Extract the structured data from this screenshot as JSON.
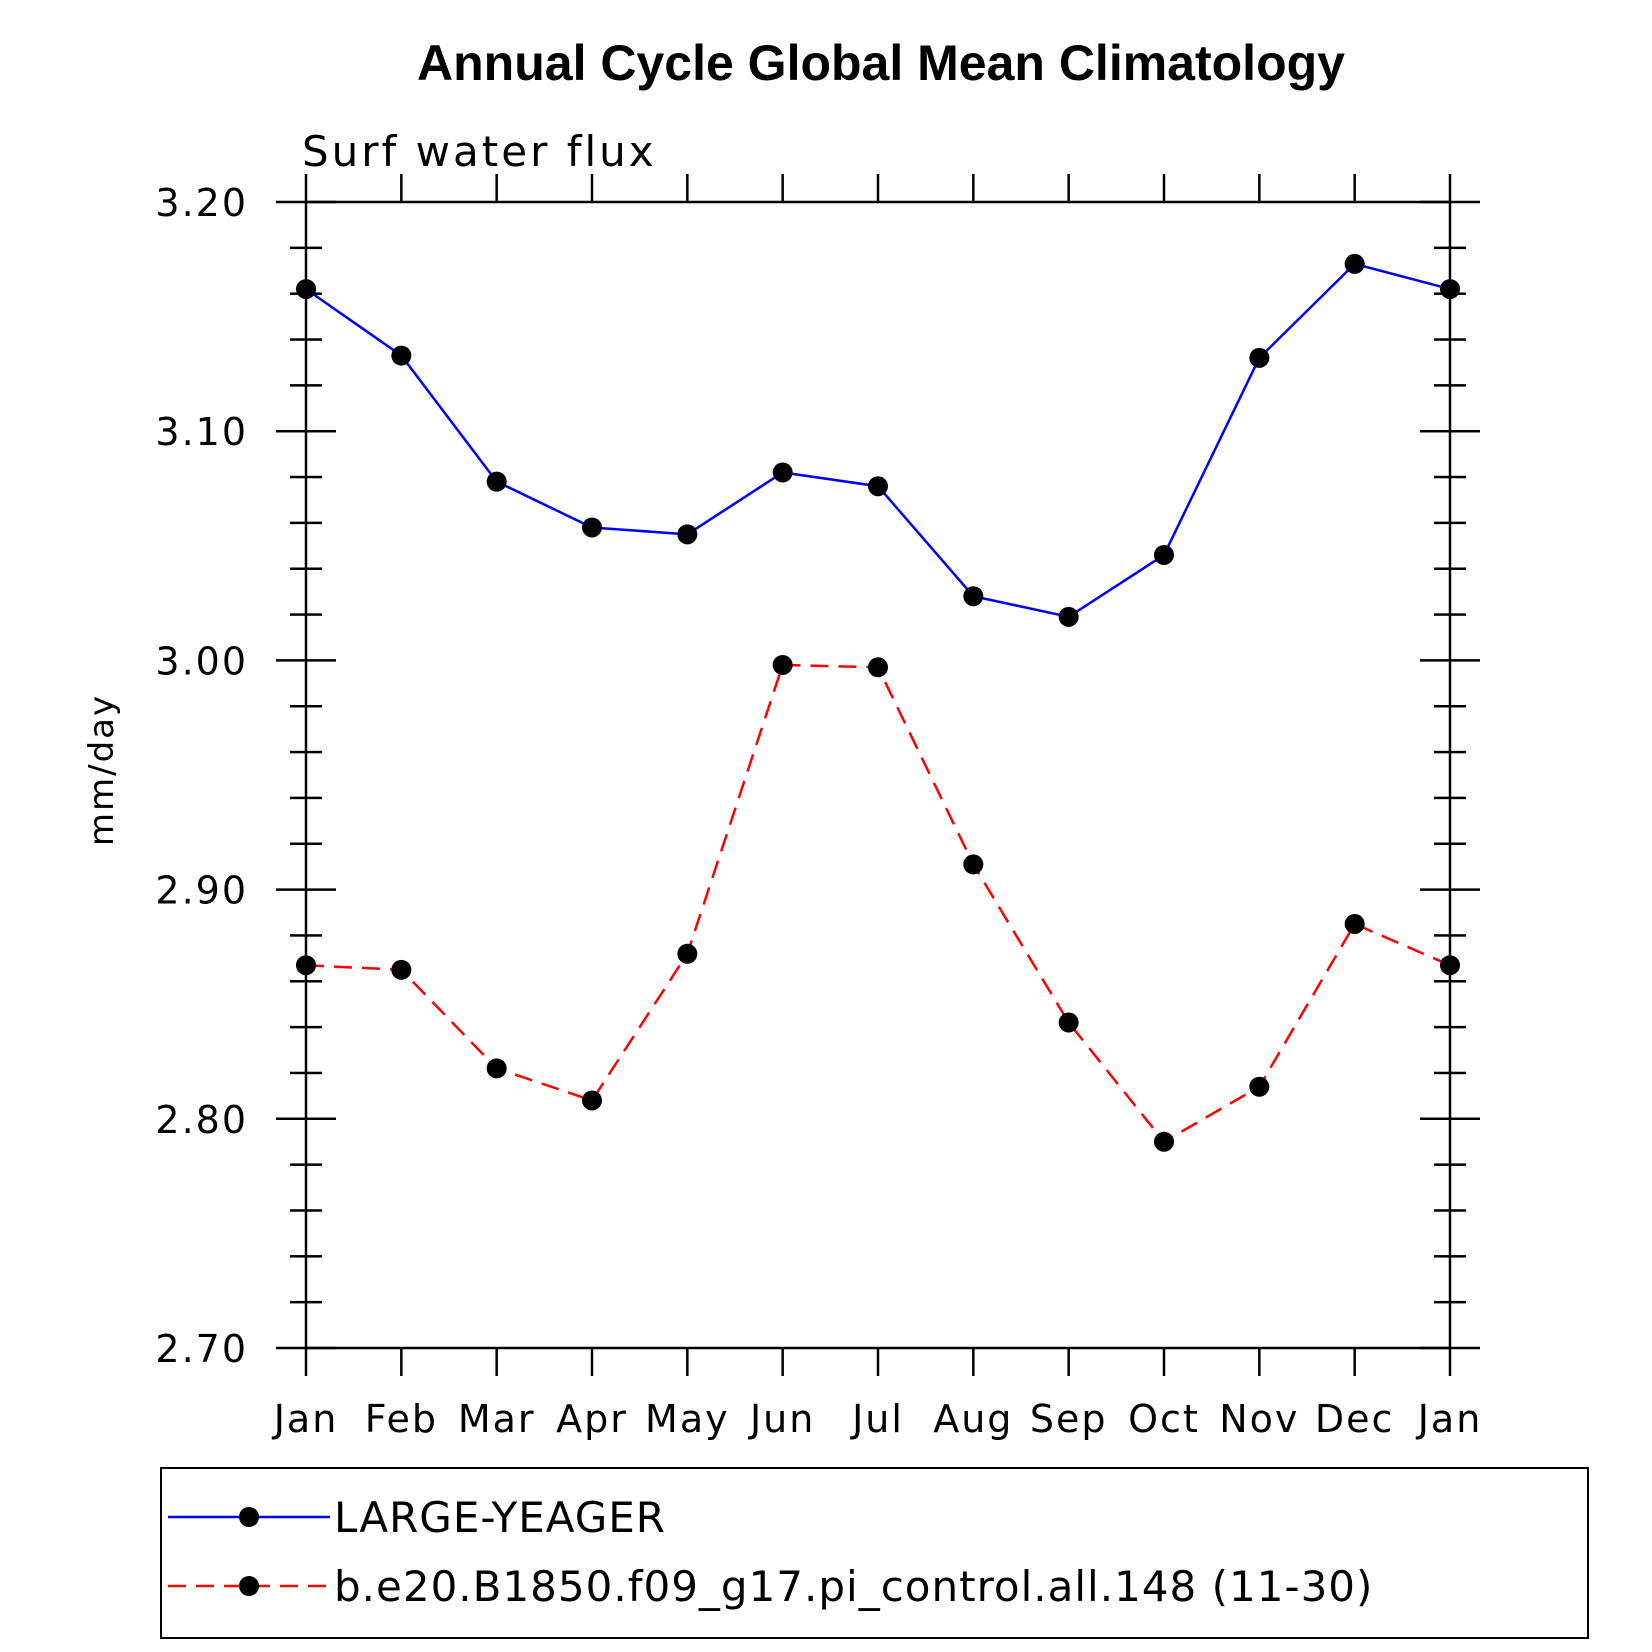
{
  "chart_data": {
    "type": "line",
    "title": "Annual Cycle Global Mean Climatology",
    "subtitle": "Surf water flux",
    "ylabel": "mm/day",
    "xlabel": "",
    "categories": [
      "Jan",
      "Feb",
      "Mar",
      "Apr",
      "May",
      "Jun",
      "Jul",
      "Aug",
      "Sep",
      "Oct",
      "Nov",
      "Dec",
      "Jan"
    ],
    "ylim": [
      2.7,
      3.2
    ],
    "yticks": [
      "2.70",
      "2.80",
      "2.90",
      "3.00",
      "3.10",
      "3.20"
    ],
    "grid": false,
    "legend_position": "bottom",
    "series": [
      {
        "name": "LARGE-YEAGER",
        "color": "#0000ff",
        "dash": "solid",
        "values": [
          3.162,
          3.133,
          3.078,
          3.058,
          3.055,
          3.082,
          3.076,
          3.028,
          3.019,
          3.046,
          3.132,
          3.173,
          3.162
        ]
      },
      {
        "name": "b.e20.B1850.f09_g17.pi_control.all.148 (11-30)",
        "color": "#ff0000",
        "dash": "dashed",
        "values": [
          2.867,
          2.865,
          2.822,
          2.808,
          2.872,
          2.998,
          2.997,
          2.911,
          2.842,
          2.79,
          2.814,
          2.885,
          2.867
        ]
      }
    ]
  }
}
